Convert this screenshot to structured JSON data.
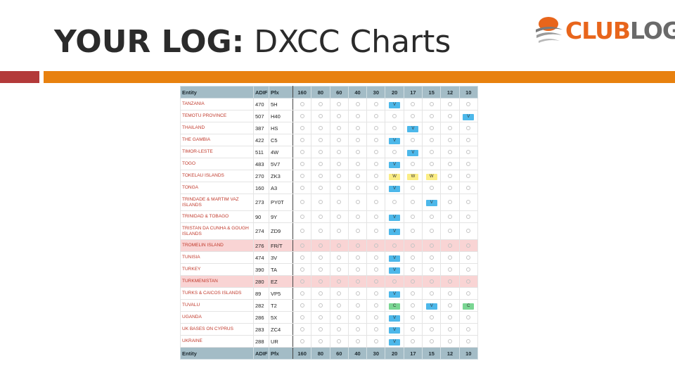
{
  "slide": {
    "title_bold": "YOUR LOG:",
    "title_rest": " DXCC Charts"
  },
  "logo": {
    "text_club": "CLUB",
    "text_log": "LOG",
    "icon": "globe-swoosh-icon"
  },
  "colors": {
    "red_bar": "#b33a3a",
    "orange_bar": "#e8810f",
    "entity_text": "#c0392b",
    "header_bg": "#a3bcc6",
    "highlight_row": "#f9d4d4",
    "badge_v": "#4db8ea",
    "badge_w": "#fbed85",
    "badge_c": "#7ad693"
  },
  "table": {
    "headers": [
      "Entity",
      "ADIF",
      "Pfx",
      "160",
      "80",
      "60",
      "40",
      "30",
      "20",
      "17",
      "15",
      "12",
      "10"
    ],
    "rows": [
      {
        "entity": "TANZANIA",
        "adif": "470",
        "pfx": "5H",
        "bands": [
          "",
          "",
          "",
          "",
          "",
          "V",
          "",
          "",
          "",
          ""
        ]
      },
      {
        "entity": "TEMOTU PROVINCE",
        "adif": "507",
        "pfx": "H40",
        "bands": [
          "",
          "",
          "",
          "",
          "",
          "",
          "",
          "",
          "",
          "V"
        ]
      },
      {
        "entity": "THAILAND",
        "adif": "387",
        "pfx": "HS",
        "bands": [
          "",
          "",
          "",
          "",
          "",
          "",
          "V",
          "",
          "",
          ""
        ]
      },
      {
        "entity": "THE GAMBIA",
        "adif": "422",
        "pfx": "C5",
        "bands": [
          "",
          "",
          "",
          "",
          "",
          "V",
          "",
          "",
          "",
          ""
        ]
      },
      {
        "entity": "TIMOR-LESTE",
        "adif": "511",
        "pfx": "4W",
        "bands": [
          "",
          "",
          "",
          "",
          "",
          "",
          "V",
          "",
          "",
          ""
        ]
      },
      {
        "entity": "TOGO",
        "adif": "483",
        "pfx": "5V7",
        "bands": [
          "",
          "",
          "",
          "",
          "",
          "V",
          "",
          "",
          "",
          ""
        ]
      },
      {
        "entity": "TOKELAU ISLANDS",
        "adif": "270",
        "pfx": "ZK3",
        "bands": [
          "",
          "",
          "",
          "",
          "",
          "W",
          "W",
          "W",
          "",
          ""
        ]
      },
      {
        "entity": "TONGA",
        "adif": "160",
        "pfx": "A3",
        "bands": [
          "",
          "",
          "",
          "",
          "",
          "V",
          "",
          "",
          "",
          ""
        ]
      },
      {
        "entity": "TRINDADE & MARTIM VAZ ISLANDS",
        "adif": "273",
        "pfx": "PY0T",
        "tall": true,
        "bands": [
          "",
          "",
          "",
          "",
          "",
          "",
          "",
          "V",
          "",
          ""
        ]
      },
      {
        "entity": "TRINIDAD & TOBAGO",
        "adif": "90",
        "pfx": "9Y",
        "bands": [
          "",
          "",
          "",
          "",
          "",
          "V",
          "",
          "",
          "",
          ""
        ]
      },
      {
        "entity": "TRISTAN DA CUNHA & GOUGH ISLANDS",
        "adif": "274",
        "pfx": "ZD9",
        "tall": true,
        "bands": [
          "",
          "",
          "",
          "",
          "",
          "V",
          "",
          "",
          "",
          ""
        ]
      },
      {
        "entity": "TROMELIN ISLAND",
        "adif": "276",
        "pfx": "FR/T",
        "highlight": true,
        "bands": [
          "",
          "",
          "",
          "",
          "",
          "",
          "",
          "",
          "",
          ""
        ]
      },
      {
        "entity": "TUNISIA",
        "adif": "474",
        "pfx": "3V",
        "bands": [
          "",
          "",
          "",
          "",
          "",
          "V",
          "",
          "",
          "",
          ""
        ]
      },
      {
        "entity": "TURKEY",
        "adif": "390",
        "pfx": "TA",
        "bands": [
          "",
          "",
          "",
          "",
          "",
          "V",
          "",
          "",
          "",
          ""
        ]
      },
      {
        "entity": "TURKMENISTAN",
        "adif": "280",
        "pfx": "EZ",
        "highlight": true,
        "bands": [
          "",
          "",
          "",
          "",
          "",
          "",
          "",
          "",
          "",
          ""
        ]
      },
      {
        "entity": "TURKS & CAICOS ISLANDS",
        "adif": "89",
        "pfx": "VP5",
        "bands": [
          "",
          "",
          "",
          "",
          "",
          "V",
          "",
          "",
          "",
          ""
        ]
      },
      {
        "entity": "TUVALU",
        "adif": "282",
        "pfx": "T2",
        "bands": [
          "",
          "",
          "",
          "",
          "",
          "C",
          "",
          "V",
          "",
          "C"
        ]
      },
      {
        "entity": "UGANDA",
        "adif": "286",
        "pfx": "5X",
        "bands": [
          "",
          "",
          "",
          "",
          "",
          "V",
          "",
          "",
          "",
          ""
        ]
      },
      {
        "entity": "UK BASES ON CYPRUS",
        "adif": "283",
        "pfx": "ZC4",
        "bands": [
          "",
          "",
          "",
          "",
          "",
          "V",
          "",
          "",
          "",
          ""
        ]
      },
      {
        "entity": "UKRAINE",
        "adif": "288",
        "pfx": "UR",
        "bands": [
          "",
          "",
          "",
          "",
          "",
          "V",
          "",
          "",
          "",
          ""
        ]
      }
    ]
  }
}
